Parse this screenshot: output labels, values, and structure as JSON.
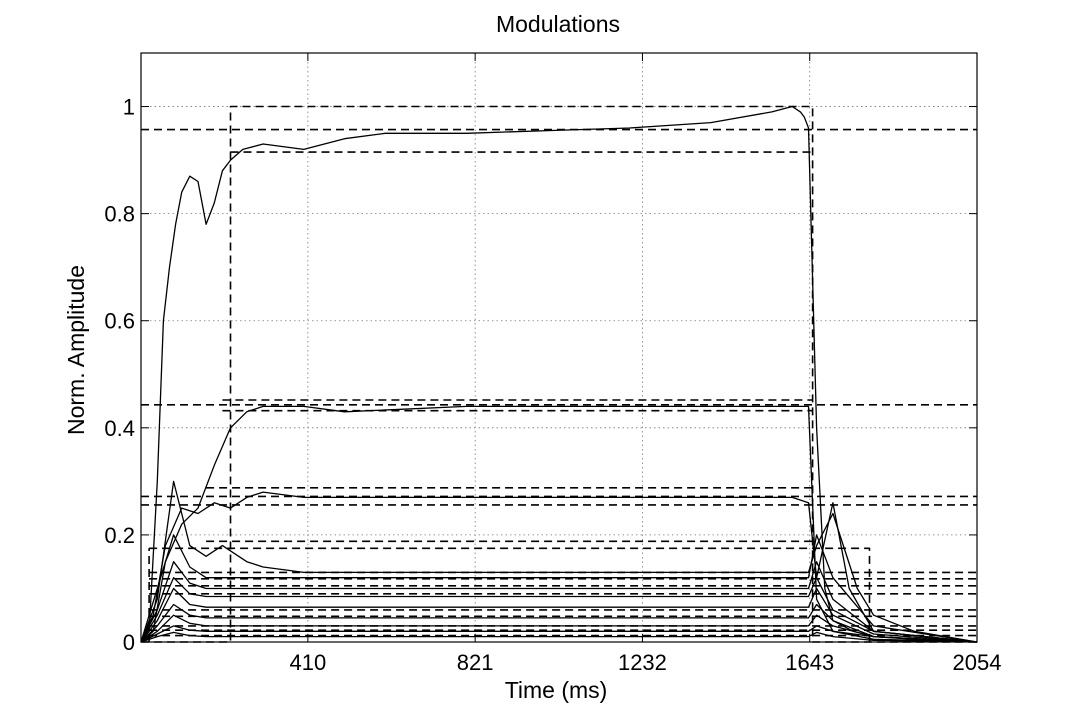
{
  "chart_data": {
    "type": "line",
    "title": "Modulations",
    "xlabel": "Time (ms)",
    "ylabel": "Norm. Amplitude",
    "xlim": [
      0,
      2054
    ],
    "ylim": [
      0,
      1.1
    ],
    "xticks": [
      410,
      821,
      1232,
      1643,
      2054
    ],
    "yticks": [
      0,
      0.2,
      0.4,
      0.6,
      0.8,
      1
    ],
    "ytick_labels": [
      "0",
      "0.2",
      "0.4",
      "0.6",
      "0.8",
      "1"
    ],
    "grid": true,
    "line_color": "#000000",
    "series": [
      {
        "style": "solid",
        "x": [
          0,
          20,
          40,
          55,
          70,
          85,
          100,
          120,
          140,
          160,
          180,
          200,
          220,
          250,
          300,
          400,
          500,
          600,
          800,
          1000,
          1200,
          1400,
          1550,
          1600,
          1620,
          1630,
          1640,
          1660,
          1680,
          1700,
          1750,
          1800,
          1900,
          2054
        ],
        "y": [
          0,
          0.02,
          0.3,
          0.6,
          0.7,
          0.78,
          0.84,
          0.87,
          0.86,
          0.78,
          0.82,
          0.88,
          0.9,
          0.92,
          0.93,
          0.92,
          0.94,
          0.95,
          0.95,
          0.955,
          0.96,
          0.97,
          0.99,
          1.0,
          0.99,
          0.98,
          0.96,
          0.4,
          0.1,
          0.04,
          0.02,
          0.01,
          0.005,
          0
        ]
      },
      {
        "style": "solid",
        "x": [
          0,
          30,
          60,
          100,
          140,
          180,
          220,
          260,
          300,
          400,
          500,
          800,
          1200,
          1600,
          1640,
          1660,
          1700,
          1800,
          2054
        ],
        "y": [
          0,
          0.02,
          0.15,
          0.22,
          0.25,
          0.33,
          0.4,
          0.43,
          0.44,
          0.44,
          0.43,
          0.44,
          0.44,
          0.44,
          0.44,
          0.08,
          0.02,
          0.01,
          0
        ]
      },
      {
        "style": "solid",
        "x": [
          0,
          30,
          60,
          100,
          140,
          180,
          220,
          260,
          300,
          400,
          800,
          1200,
          1600,
          1640,
          1660,
          1700,
          1740,
          1800,
          2054
        ],
        "y": [
          0,
          0.05,
          0.18,
          0.25,
          0.24,
          0.26,
          0.25,
          0.27,
          0.28,
          0.27,
          0.27,
          0.27,
          0.27,
          0.26,
          0.12,
          0.26,
          0.1,
          0.02,
          0
        ]
      },
      {
        "style": "solid",
        "x": [
          0,
          40,
          80,
          120,
          160,
          200,
          260,
          300,
          400,
          800,
          1200,
          1600,
          1640,
          1660,
          1700,
          1760,
          1800,
          1900,
          2054
        ],
        "y": [
          0,
          0.08,
          0.3,
          0.18,
          0.16,
          0.18,
          0.15,
          0.14,
          0.13,
          0.13,
          0.13,
          0.13,
          0.13,
          0.18,
          0.24,
          0.1,
          0.05,
          0.02,
          0
        ]
      },
      {
        "style": "solid",
        "x": [
          0,
          40,
          80,
          120,
          160,
          200,
          300,
          400,
          800,
          1200,
          1600,
          1640,
          1660,
          1700,
          1800,
          2054
        ],
        "y": [
          0,
          0.1,
          0.2,
          0.14,
          0.12,
          0.12,
          0.12,
          0.12,
          0.12,
          0.12,
          0.12,
          0.12,
          0.2,
          0.12,
          0.03,
          0
        ]
      },
      {
        "style": "solid",
        "x": [
          0,
          40,
          80,
          120,
          160,
          200,
          300,
          400,
          800,
          1200,
          1600,
          1640,
          1660,
          1700,
          1800,
          2054
        ],
        "y": [
          0,
          0.06,
          0.15,
          0.11,
          0.1,
          0.1,
          0.1,
          0.1,
          0.1,
          0.1,
          0.1,
          0.1,
          0.15,
          0.08,
          0.02,
          0
        ]
      },
      {
        "style": "solid",
        "x": [
          0,
          40,
          80,
          120,
          160,
          200,
          300,
          400,
          800,
          1200,
          1600,
          1640,
          1660,
          1700,
          1800,
          2054
        ],
        "y": [
          0,
          0.05,
          0.12,
          0.09,
          0.085,
          0.085,
          0.085,
          0.085,
          0.085,
          0.085,
          0.085,
          0.085,
          0.12,
          0.06,
          0.02,
          0
        ]
      },
      {
        "style": "solid",
        "x": [
          0,
          40,
          80,
          120,
          160,
          200,
          300,
          400,
          800,
          1200,
          1600,
          1640,
          1660,
          1700,
          1800,
          2054
        ],
        "y": [
          0,
          0.04,
          0.1,
          0.07,
          0.065,
          0.065,
          0.065,
          0.065,
          0.065,
          0.065,
          0.065,
          0.065,
          0.1,
          0.05,
          0.015,
          0
        ]
      },
      {
        "style": "solid",
        "x": [
          0,
          40,
          80,
          120,
          160,
          200,
          300,
          400,
          800,
          1200,
          1600,
          1640,
          1660,
          1700,
          1800,
          2054
        ],
        "y": [
          0,
          0.03,
          0.07,
          0.05,
          0.045,
          0.045,
          0.045,
          0.045,
          0.045,
          0.045,
          0.045,
          0.045,
          0.07,
          0.04,
          0.01,
          0
        ]
      },
      {
        "style": "solid",
        "x": [
          0,
          40,
          80,
          120,
          160,
          200,
          300,
          400,
          800,
          1200,
          1600,
          1640,
          1660,
          1700,
          1800,
          2054
        ],
        "y": [
          0,
          0.02,
          0.05,
          0.035,
          0.03,
          0.03,
          0.03,
          0.03,
          0.03,
          0.03,
          0.03,
          0.03,
          0.05,
          0.03,
          0.01,
          0
        ]
      },
      {
        "style": "solid",
        "x": [
          0,
          40,
          80,
          120,
          160,
          200,
          300,
          400,
          800,
          1200,
          1600,
          1640,
          1660,
          1700,
          1800,
          2054
        ],
        "y": [
          0,
          0.015,
          0.03,
          0.022,
          0.02,
          0.02,
          0.02,
          0.02,
          0.02,
          0.02,
          0.02,
          0.02,
          0.03,
          0.02,
          0.005,
          0
        ]
      },
      {
        "style": "solid",
        "x": [
          0,
          40,
          80,
          120,
          160,
          200,
          300,
          400,
          800,
          1200,
          1600,
          1640,
          1660,
          1700,
          1800,
          2054
        ],
        "y": [
          0,
          0.01,
          0.018,
          0.012,
          0.01,
          0.01,
          0.01,
          0.01,
          0.01,
          0.01,
          0.01,
          0.01,
          0.018,
          0.01,
          0.003,
          0
        ]
      },
      {
        "style": "dashed",
        "x": [
          0,
          220,
          220,
          1650,
          1650,
          2054
        ],
        "y": [
          0,
          0,
          1.0,
          1.0,
          0,
          0
        ]
      },
      {
        "style": "dashed",
        "x": [
          0,
          2054
        ],
        "y": [
          0.957,
          0.957
        ]
      },
      {
        "style": "dashed",
        "x": [
          220,
          1650
        ],
        "y": [
          0.915,
          0.915
        ]
      },
      {
        "style": "dashed",
        "x": [
          200,
          1650
        ],
        "y": [
          0.452,
          0.452
        ]
      },
      {
        "style": "dashed",
        "x": [
          0,
          2054
        ],
        "y": [
          0.443,
          0.443
        ]
      },
      {
        "style": "dashed",
        "x": [
          200,
          1650
        ],
        "y": [
          0.432,
          0.432
        ]
      },
      {
        "style": "dashed",
        "x": [
          160,
          1650
        ],
        "y": [
          0.288,
          0.288
        ]
      },
      {
        "style": "dashed",
        "x": [
          0,
          2054
        ],
        "y": [
          0.272,
          0.272
        ]
      },
      {
        "style": "dashed",
        "x": [
          0,
          2054
        ],
        "y": [
          0.256,
          0.256
        ]
      },
      {
        "style": "dashed",
        "x": [
          160,
          1650
        ],
        "y": [
          0.188,
          0.188
        ]
      },
      {
        "style": "dashed",
        "x": [
          20,
          1790,
          1790
        ],
        "y": [
          0.175,
          0.175,
          0
        ]
      },
      {
        "style": "dashed",
        "x": [
          20,
          20
        ],
        "y": [
          0,
          0.175
        ]
      },
      {
        "style": "dashed",
        "x": [
          20,
          2054
        ],
        "y": [
          0.13,
          0.13
        ]
      },
      {
        "style": "dashed",
        "x": [
          20,
          2054
        ],
        "y": [
          0.118,
          0.118
        ]
      },
      {
        "style": "dashed",
        "x": [
          20,
          2054
        ],
        "y": [
          0.105,
          0.105
        ]
      },
      {
        "style": "dashed",
        "x": [
          20,
          2054
        ],
        "y": [
          0.09,
          0.09
        ]
      },
      {
        "style": "dashed",
        "x": [
          20,
          2054
        ],
        "y": [
          0.06,
          0.06
        ]
      },
      {
        "style": "dashed",
        "x": [
          20,
          2054
        ],
        "y": [
          0.048,
          0.048
        ]
      },
      {
        "style": "dashed",
        "x": [
          20,
          2054
        ],
        "y": [
          0.03,
          0.03
        ]
      },
      {
        "style": "dashed",
        "x": [
          20,
          2054
        ],
        "y": [
          0.022,
          0.022
        ]
      },
      {
        "style": "dashed",
        "x": [
          20,
          2054
        ],
        "y": [
          0.012,
          0.012
        ]
      }
    ]
  }
}
